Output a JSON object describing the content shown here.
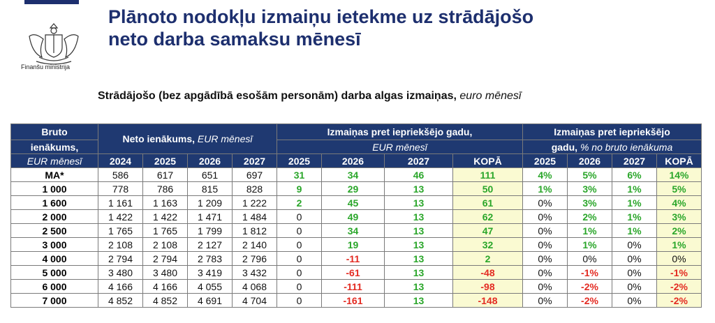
{
  "ministry": "Finanšu ministrija",
  "title_line1": "Plānoto nodokļu izmaiņu ietekme uz strādājošo",
  "title_line2": "neto darba samaksu mēnesī",
  "subtitle_main": "Strādājošo (bez apgādībā esošām personām) darba algas izmaiņas",
  "subtitle_unit": "euro mēnesī",
  "header": {
    "bruto_line1": "Bruto",
    "bruto_line2": "ienākums,",
    "bruto_unit": "EUR mēnesī",
    "neto_label": "Neto ienākums,",
    "neto_unit": "EUR mēnesī",
    "change_eur_line1": "Izmaiņas pret iepriekšējo gadu,",
    "change_eur_unit": "EUR mēnesī",
    "change_pct_line1": "Izmaiņas pret iepriekšējo",
    "change_pct_line2a": "gadu,",
    "change_pct_unit": "% no bruto ienākuma",
    "years": [
      "2024",
      "2025",
      "2026",
      "2027"
    ],
    "change_years": [
      "2025",
      "2026",
      "2027",
      "KOPĀ"
    ]
  },
  "colors": {
    "header_bg": "#1f3971",
    "title": "#1d2f6e",
    "positive": "#2aa62a",
    "negative": "#e32b22",
    "total_bg": "#fafad2"
  },
  "rows": [
    {
      "label": "MA*",
      "neto": [
        "586",
        "617",
        "651",
        "697"
      ],
      "eur": [
        "31",
        "34",
        "46",
        "111"
      ],
      "pct": [
        "4%",
        "5%",
        "6%",
        "14%"
      ]
    },
    {
      "label": "1 000",
      "neto": [
        "778",
        "786",
        "815",
        "828"
      ],
      "eur": [
        "9",
        "29",
        "13",
        "50"
      ],
      "pct": [
        "1%",
        "3%",
        "1%",
        "5%"
      ]
    },
    {
      "label": "1 600",
      "neto": [
        "1 161",
        "1 163",
        "1 209",
        "1 222"
      ],
      "eur": [
        "2",
        "45",
        "13",
        "61"
      ],
      "pct": [
        "0%",
        "3%",
        "1%",
        "4%"
      ]
    },
    {
      "label": "2 000",
      "neto": [
        "1 422",
        "1 422",
        "1 471",
        "1 484"
      ],
      "eur": [
        "0",
        "49",
        "13",
        "62"
      ],
      "pct": [
        "0%",
        "2%",
        "1%",
        "3%"
      ]
    },
    {
      "label": "2 500",
      "neto": [
        "1 765",
        "1 765",
        "1 799",
        "1 812"
      ],
      "eur": [
        "0",
        "34",
        "13",
        "47"
      ],
      "pct": [
        "0%",
        "1%",
        "1%",
        "2%"
      ]
    },
    {
      "label": "3 000",
      "neto": [
        "2 108",
        "2 108",
        "2 127",
        "2 140"
      ],
      "eur": [
        "0",
        "19",
        "13",
        "32"
      ],
      "pct": [
        "0%",
        "1%",
        "0%",
        "1%"
      ]
    },
    {
      "label": "4 000",
      "neto": [
        "2 794",
        "2 794",
        "2 783",
        "2 796"
      ],
      "eur": [
        "0",
        "-11",
        "13",
        "2"
      ],
      "pct": [
        "0%",
        "0%",
        "0%",
        "0%"
      ]
    },
    {
      "label": "5 000",
      "neto": [
        "3 480",
        "3 480",
        "3 419",
        "3 432"
      ],
      "eur": [
        "0",
        "-61",
        "13",
        "-48"
      ],
      "pct": [
        "0%",
        "-1%",
        "0%",
        "-1%"
      ]
    },
    {
      "label": "6 000",
      "neto": [
        "4 166",
        "4 166",
        "4 055",
        "4 068"
      ],
      "eur": [
        "0",
        "-111",
        "13",
        "-98"
      ],
      "pct": [
        "0%",
        "-2%",
        "0%",
        "-2%"
      ]
    },
    {
      "label": "7 000",
      "neto": [
        "4 852",
        "4 852",
        "4 691",
        "4 704"
      ],
      "eur": [
        "0",
        "-161",
        "13",
        "-148"
      ],
      "pct": [
        "0%",
        "-2%",
        "0%",
        "-2%"
      ]
    }
  ]
}
